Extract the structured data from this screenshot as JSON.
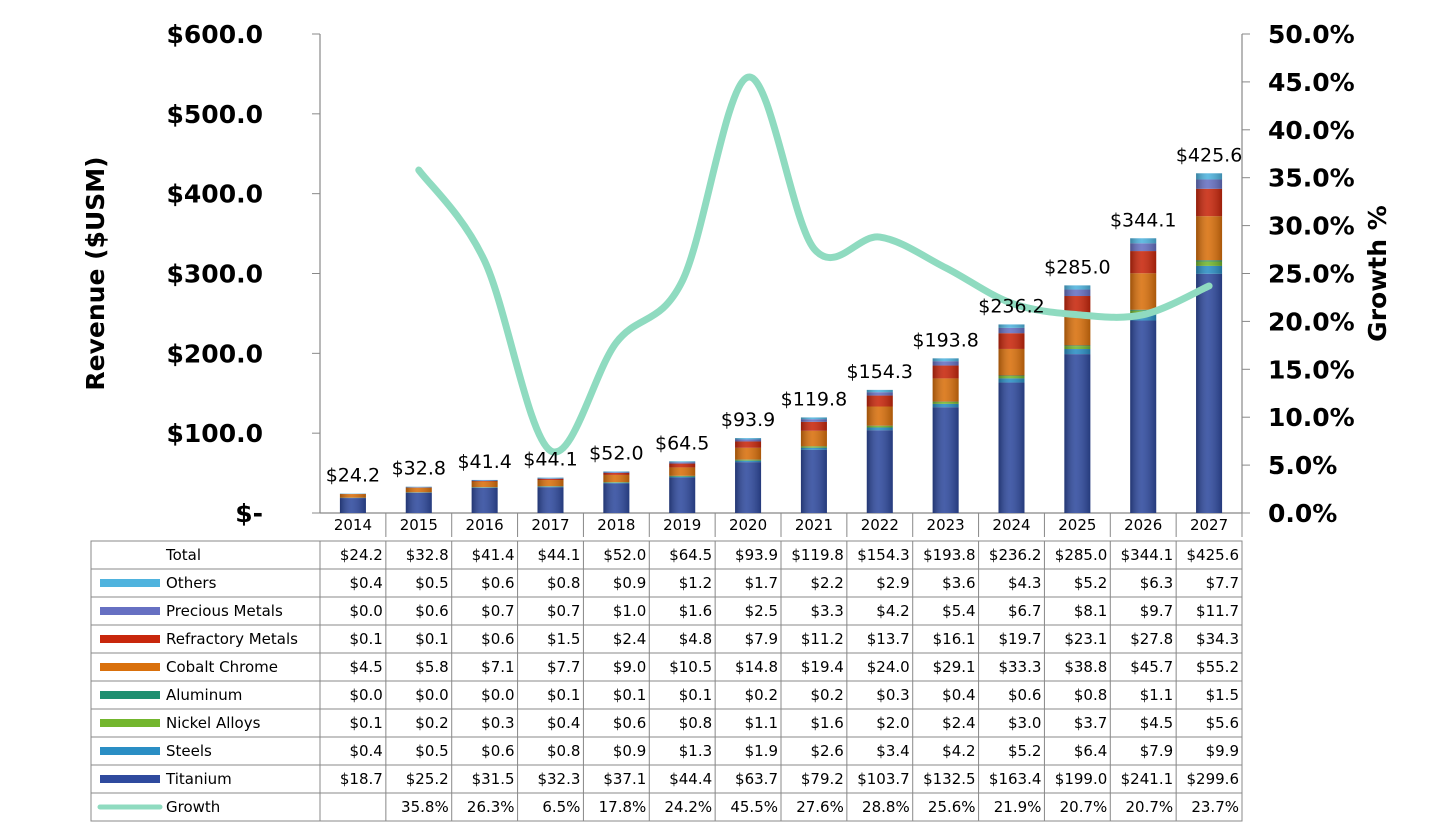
{
  "chart_data": {
    "type": "bar",
    "title": "",
    "ylabel": "Revenue ($USM)",
    "y2label": "Growth %",
    "ylim": [
      0,
      600
    ],
    "y2lim": [
      0,
      50
    ],
    "y_ticks": [
      "$-",
      "$100.0",
      "$200.0",
      "$300.0",
      "$400.0",
      "$500.0",
      "$600.0"
    ],
    "y2_ticks": [
      "0.0%",
      "5.0%",
      "10.0%",
      "15.0%",
      "20.0%",
      "25.0%",
      "30.0%",
      "35.0%",
      "40.0%",
      "45.0%",
      "50.0%"
    ],
    "categories": [
      "2014",
      "2015",
      "2016",
      "2017",
      "2018",
      "2019",
      "2020",
      "2021",
      "2022",
      "2023",
      "2024",
      "2025",
      "2026",
      "2027"
    ],
    "totals": [
      24.2,
      32.8,
      41.4,
      44.1,
      52.0,
      64.5,
      93.9,
      119.8,
      154.3,
      193.8,
      236.2,
      285.0,
      344.1,
      425.6
    ],
    "total_labels": [
      "$24.2",
      "$32.8",
      "$41.4",
      "$44.1",
      "$52.0",
      "$64.5",
      "$93.9",
      "$119.8",
      "$154.3",
      "$193.8",
      "$236.2",
      "$285.0",
      "$344.1",
      "$425.6"
    ],
    "total_row_label": "Total",
    "total_row": [
      "$24.2",
      "$32.8",
      "$41.4",
      "$44.1",
      "$52.0",
      "$64.5",
      "$93.9",
      "$119.8",
      "$154.3",
      "$193.8",
      "$236.2",
      "$285.0",
      "$344.1",
      "$425.6"
    ],
    "series": [
      {
        "name": "Others",
        "color": "#4fb3de",
        "values": [
          0.4,
          0.5,
          0.6,
          0.8,
          0.9,
          1.2,
          1.7,
          2.2,
          2.9,
          3.6,
          4.3,
          5.2,
          6.3,
          7.7
        ],
        "labels": [
          "$0.4",
          "$0.5",
          "$0.6",
          "$0.8",
          "$0.9",
          "$1.2",
          "$1.7",
          "$2.2",
          "$2.9",
          "$3.6",
          "$4.3",
          "$5.2",
          "$6.3",
          "$7.7"
        ]
      },
      {
        "name": "Precious Metals",
        "color": "#6670c2",
        "values": [
          0.0,
          0.6,
          0.7,
          0.7,
          1.0,
          1.6,
          2.5,
          3.3,
          4.2,
          5.4,
          6.7,
          8.1,
          9.7,
          11.7
        ],
        "labels": [
          "$0.0",
          "$0.6",
          "$0.7",
          "$0.7",
          "$1.0",
          "$1.6",
          "$2.5",
          "$3.3",
          "$4.2",
          "$5.4",
          "$6.7",
          "$8.1",
          "$9.7",
          "$11.7"
        ]
      },
      {
        "name": "Refractory Metals",
        "color": "#c8270c",
        "values": [
          0.1,
          0.1,
          0.6,
          1.5,
          2.4,
          4.8,
          7.9,
          11.2,
          13.7,
          16.1,
          19.7,
          23.1,
          27.8,
          34.3
        ],
        "labels": [
          "$0.1",
          "$0.1",
          "$0.6",
          "$1.5",
          "$2.4",
          "$4.8",
          "$7.9",
          "$11.2",
          "$13.7",
          "$16.1",
          "$19.7",
          "$23.1",
          "$27.8",
          "$34.3"
        ]
      },
      {
        "name": "Cobalt Chrome",
        "color": "#d9700c",
        "values": [
          4.5,
          5.8,
          7.1,
          7.7,
          9.0,
          10.5,
          14.8,
          19.4,
          24.0,
          29.1,
          33.3,
          38.8,
          45.7,
          55.2
        ],
        "labels": [
          "$4.5",
          "$5.8",
          "$7.1",
          "$7.7",
          "$9.0",
          "$10.5",
          "$14.8",
          "$19.4",
          "$24.0",
          "$29.1",
          "$33.3",
          "$38.8",
          "$45.7",
          "$55.2"
        ]
      },
      {
        "name": "Aluminum",
        "color": "#1f8f70",
        "values": [
          0.0,
          0.0,
          0.0,
          0.1,
          0.1,
          0.1,
          0.2,
          0.2,
          0.3,
          0.4,
          0.6,
          0.8,
          1.1,
          1.5
        ],
        "labels": [
          "$0.0",
          "$0.0",
          "$0.0",
          "$0.1",
          "$0.1",
          "$0.1",
          "$0.2",
          "$0.2",
          "$0.3",
          "$0.4",
          "$0.6",
          "$0.8",
          "$1.1",
          "$1.5"
        ]
      },
      {
        "name": "Nickel Alloys",
        "color": "#73b62e",
        "values": [
          0.1,
          0.2,
          0.3,
          0.4,
          0.6,
          0.8,
          1.1,
          1.6,
          2.0,
          2.4,
          3.0,
          3.7,
          4.5,
          5.6
        ],
        "labels": [
          "$0.1",
          "$0.2",
          "$0.3",
          "$0.4",
          "$0.6",
          "$0.8",
          "$1.1",
          "$1.6",
          "$2.0",
          "$2.4",
          "$3.0",
          "$3.7",
          "$4.5",
          "$5.6"
        ]
      },
      {
        "name": "Steels",
        "color": "#2a8ec4",
        "values": [
          0.4,
          0.5,
          0.6,
          0.8,
          0.9,
          1.3,
          1.9,
          2.6,
          3.4,
          4.2,
          5.2,
          6.4,
          7.9,
          9.9
        ],
        "labels": [
          "$0.4",
          "$0.5",
          "$0.6",
          "$0.8",
          "$0.9",
          "$1.3",
          "$1.9",
          "$2.6",
          "$3.4",
          "$4.2",
          "$5.2",
          "$6.4",
          "$7.9",
          "$9.9"
        ]
      },
      {
        "name": "Titanium",
        "color": "#2f4a9e",
        "values": [
          18.7,
          25.2,
          31.5,
          32.3,
          37.1,
          44.4,
          63.7,
          79.2,
          103.7,
          132.5,
          163.4,
          199.0,
          241.1,
          299.6
        ],
        "labels": [
          "$18.7",
          "$25.2",
          "$31.5",
          "$32.3",
          "$37.1",
          "$44.4",
          "$63.7",
          "$79.2",
          "$103.7",
          "$132.5",
          "$163.4",
          "$199.0",
          "$241.1",
          "$299.6"
        ]
      }
    ],
    "growth": {
      "name": "Growth",
      "color": "#8fdbc0",
      "values": [
        null,
        35.8,
        26.3,
        6.5,
        17.8,
        24.2,
        45.5,
        27.6,
        28.8,
        25.6,
        21.9,
        20.7,
        20.7,
        23.7
      ],
      "labels": [
        "",
        "35.8%",
        "26.3%",
        "6.5%",
        "17.8%",
        "24.2%",
        "45.5%",
        "27.6%",
        "28.8%",
        "25.6%",
        "21.9%",
        "20.7%",
        "20.7%",
        "23.7%"
      ]
    }
  }
}
